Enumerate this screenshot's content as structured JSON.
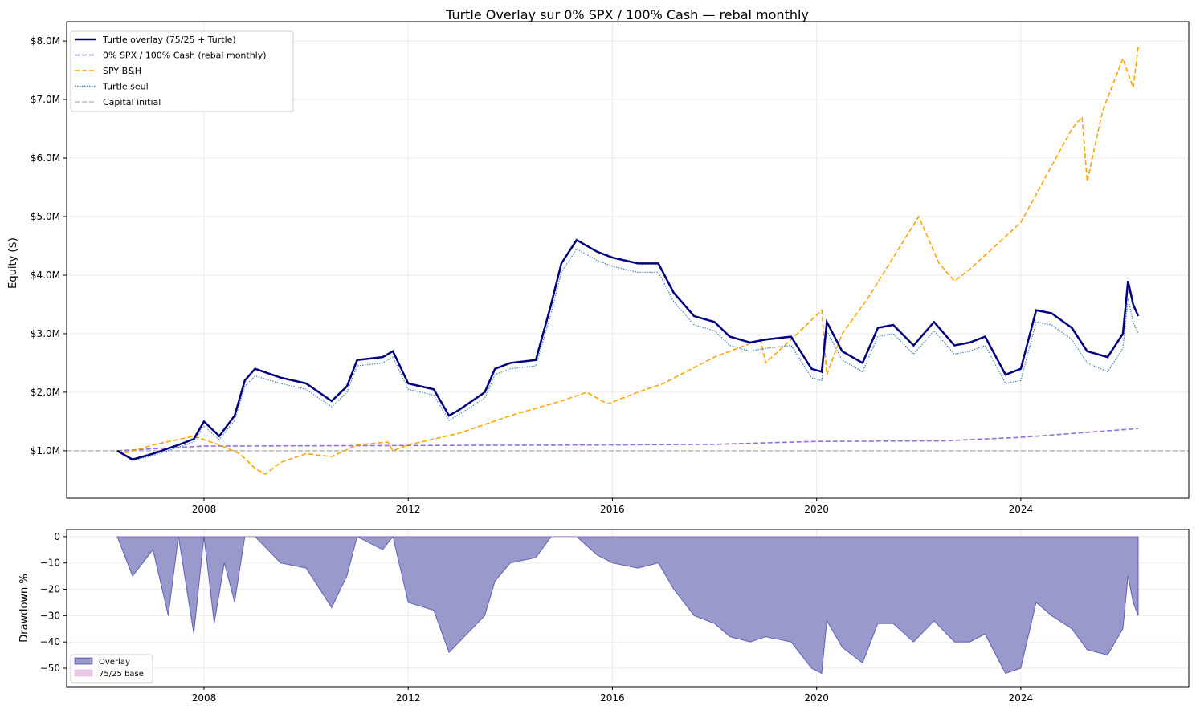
{
  "chart_data": [
    {
      "type": "line",
      "title": "Turtle Overlay sur 0% SPX / 100% Cash — rebal monthly",
      "xlabel": "",
      "ylabel": "Equity ($)",
      "xlim": [
        2005.31,
        2027.29
      ],
      "ylim": [
        0.19,
        8.33
      ],
      "grid": true,
      "legend_position": "top-left",
      "x_ticks": [
        2008,
        2012,
        2016,
        2020,
        2024
      ],
      "x_tick_labels": [
        "2008",
        "2012",
        "2016",
        "2020",
        "2024"
      ],
      "y_ticks": [
        1,
        2,
        3,
        4,
        5,
        6,
        7,
        8
      ],
      "y_tick_labels": [
        "$1.0M",
        "$2.0M",
        "$3.0M",
        "$4.0M",
        "$5.0M",
        "$6.0M",
        "$7.0M",
        "$8.0M"
      ],
      "series": [
        {
          "name": "Turtle overlay (75/25 + Turtle)",
          "color": "#000080",
          "style": "solid",
          "x": [
            2006.3,
            2006.6,
            2007.0,
            2007.5,
            2007.8,
            2008.0,
            2008.3,
            2008.6,
            2008.8,
            2009.0,
            2009.5,
            2010.0,
            2010.5,
            2010.8,
            2011.0,
            2011.5,
            2011.7,
            2012.0,
            2012.5,
            2012.8,
            2013.0,
            2013.5,
            2013.7,
            2014.0,
            2014.5,
            2014.8,
            2015.0,
            2015.3,
            2015.7,
            2016.0,
            2016.5,
            2016.9,
            2017.2,
            2017.6,
            2018.0,
            2018.3,
            2018.7,
            2019.0,
            2019.5,
            2019.9,
            2020.1,
            2020.2,
            2020.5,
            2020.9,
            2021.2,
            2021.5,
            2021.9,
            2022.3,
            2022.7,
            2023.0,
            2023.3,
            2023.7,
            2024.0,
            2024.3,
            2024.6,
            2025.0,
            2025.3,
            2025.7,
            2026.0,
            2026.1,
            2026.2,
            2026.3
          ],
          "y": [
            1.0,
            0.85,
            0.95,
            1.1,
            1.2,
            1.5,
            1.25,
            1.6,
            2.2,
            2.4,
            2.25,
            2.15,
            1.85,
            2.1,
            2.55,
            2.6,
            2.7,
            2.15,
            2.05,
            1.6,
            1.7,
            2.0,
            2.4,
            2.5,
            2.55,
            3.5,
            4.2,
            4.6,
            4.4,
            4.3,
            4.2,
            4.2,
            3.7,
            3.3,
            3.2,
            2.95,
            2.85,
            2.9,
            2.95,
            2.4,
            2.35,
            3.2,
            2.7,
            2.5,
            3.1,
            3.15,
            2.8,
            3.2,
            2.8,
            2.85,
            2.95,
            2.3,
            2.4,
            3.4,
            3.35,
            3.1,
            2.7,
            2.6,
            3.0,
            3.9,
            3.5,
            3.3
          ]
        },
        {
          "name": "0% SPX / 100% Cash (rebal monthly)",
          "color": "#9370DB",
          "style": "dashed",
          "x": [
            2006.3,
            2008.0,
            2016.0,
            2018.0,
            2020.0,
            2022.5,
            2024.0,
            2026.3
          ],
          "y": [
            1.0,
            1.08,
            1.1,
            1.11,
            1.16,
            1.17,
            1.23,
            1.38
          ]
        },
        {
          "name": "SPY B&H",
          "color": "#FFA500",
          "style": "dashed",
          "x": [
            2006.3,
            2006.5,
            2007.0,
            2007.8,
            2008.3,
            2008.7,
            2009.0,
            2009.2,
            2009.5,
            2010.0,
            2010.5,
            2011.0,
            2011.6,
            2011.7,
            2012.0,
            2013.0,
            2014.0,
            2015.0,
            2015.5,
            2015.9,
            2016.5,
            2017.0,
            2018.0,
            2018.9,
            2019.0,
            2019.5,
            2020.1,
            2020.2,
            2020.5,
            2021.0,
            2021.5,
            2022.0,
            2022.4,
            2022.7,
            2023.0,
            2023.5,
            2024.0,
            2024.5,
            2025.0,
            2025.2,
            2025.3,
            2025.6,
            2026.0,
            2026.2,
            2026.3
          ],
          "y": [
            1.0,
            0.97,
            1.1,
            1.25,
            1.1,
            0.95,
            0.7,
            0.6,
            0.8,
            0.95,
            0.9,
            1.1,
            1.15,
            1.0,
            1.1,
            1.3,
            1.6,
            1.85,
            2.0,
            1.8,
            2.0,
            2.15,
            2.6,
            2.9,
            2.5,
            2.9,
            3.4,
            2.3,
            3.0,
            3.6,
            4.3,
            5.0,
            4.2,
            3.9,
            4.1,
            4.5,
            4.9,
            5.7,
            6.5,
            6.7,
            5.6,
            6.8,
            7.7,
            7.2,
            7.9
          ]
        },
        {
          "name": "Turtle seul",
          "color": "#4682B4",
          "style": "dotted",
          "x": [
            2006.3,
            2006.6,
            2007.0,
            2007.5,
            2007.8,
            2008.0,
            2008.3,
            2008.6,
            2008.8,
            2009.0,
            2009.5,
            2010.0,
            2010.5,
            2010.8,
            2011.0,
            2011.5,
            2011.7,
            2012.0,
            2012.5,
            2012.8,
            2013.0,
            2013.5,
            2013.7,
            2014.0,
            2014.5,
            2014.8,
            2015.0,
            2015.3,
            2015.7,
            2016.0,
            2016.5,
            2016.9,
            2017.2,
            2017.6,
            2018.0,
            2018.3,
            2018.7,
            2019.0,
            2019.5,
            2019.9,
            2020.1,
            2020.2,
            2020.5,
            2020.9,
            2021.2,
            2021.5,
            2021.9,
            2022.3,
            2022.7,
            2023.0,
            2023.3,
            2023.7,
            2024.0,
            2024.3,
            2024.6,
            2025.0,
            2025.3,
            2025.7,
            2026.0,
            2026.1,
            2026.2,
            2026.3
          ],
          "y": [
            1.0,
            0.83,
            0.92,
            1.06,
            1.15,
            1.42,
            1.19,
            1.52,
            2.1,
            2.28,
            2.15,
            2.05,
            1.75,
            2.0,
            2.45,
            2.5,
            2.6,
            2.05,
            1.95,
            1.52,
            1.62,
            1.9,
            2.3,
            2.4,
            2.45,
            3.35,
            4.05,
            4.45,
            4.25,
            4.15,
            4.05,
            4.05,
            3.55,
            3.15,
            3.05,
            2.8,
            2.7,
            2.75,
            2.8,
            2.25,
            2.2,
            3.05,
            2.55,
            2.35,
            2.95,
            3.0,
            2.65,
            3.05,
            2.65,
            2.7,
            2.8,
            2.15,
            2.2,
            3.2,
            3.15,
            2.9,
            2.5,
            2.35,
            2.75,
            3.6,
            3.2,
            3.0
          ]
        },
        {
          "name": "Capital initial",
          "color": "#BBBBBB",
          "style": "dashed",
          "x": [
            2005.31,
            2027.29
          ],
          "y": [
            1.0,
            1.0
          ]
        }
      ]
    },
    {
      "type": "area",
      "title": "",
      "xlabel": "",
      "ylabel": "Drawdown %",
      "xlim": [
        2005.31,
        2027.29
      ],
      "ylim": [
        -57,
        2.7
      ],
      "grid": true,
      "legend_position": "bottom-left",
      "x_ticks": [
        2008,
        2012,
        2016,
        2020,
        2024
      ],
      "x_tick_labels": [
        "2008",
        "2012",
        "2016",
        "2020",
        "2024"
      ],
      "y_ticks": [
        0,
        -10,
        -20,
        -30,
        -40,
        -50
      ],
      "y_tick_labels": [
        "0",
        "−10",
        "−20",
        "−30",
        "−40",
        "−50"
      ],
      "series": [
        {
          "name": "Overlay",
          "color": "#00008B",
          "fill": "#9999CC",
          "x": [
            2006.3,
            2006.6,
            2007.0,
            2007.3,
            2007.5,
            2007.8,
            2008.0,
            2008.2,
            2008.4,
            2008.6,
            2008.8,
            2009.0,
            2009.5,
            2010.0,
            2010.5,
            2010.8,
            2011.0,
            2011.5,
            2011.7,
            2012.0,
            2012.5,
            2012.8,
            2013.0,
            2013.5,
            2013.7,
            2014.0,
            2014.5,
            2014.8,
            2015.0,
            2015.3,
            2015.7,
            2016.0,
            2016.5,
            2016.9,
            2017.2,
            2017.6,
            2018.0,
            2018.3,
            2018.7,
            2019.0,
            2019.5,
            2019.9,
            2020.1,
            2020.2,
            2020.5,
            2020.9,
            2021.2,
            2021.5,
            2021.9,
            2022.3,
            2022.7,
            2023.0,
            2023.3,
            2023.7,
            2024.0,
            2024.3,
            2024.6,
            2025.0,
            2025.3,
            2025.7,
            2026.0,
            2026.1,
            2026.2,
            2026.3
          ],
          "y": [
            0,
            -15,
            -5,
            -30,
            0,
            -37,
            0,
            -33,
            -10,
            -25,
            0,
            0,
            -10,
            -12,
            -27,
            -15,
            0,
            -5,
            0,
            -25,
            -28,
            -44,
            -40,
            -30,
            -17,
            -10,
            -8,
            0,
            0,
            0,
            -7,
            -10,
            -12,
            -10,
            -20,
            -30,
            -33,
            -38,
            -40,
            -38,
            -40,
            -50,
            -52,
            -32,
            -42,
            -48,
            -33,
            -33,
            -40,
            -32,
            -40,
            -40,
            -37,
            -52,
            -50,
            -25,
            -30,
            -35,
            -43,
            -45,
            -35,
            -15,
            -25,
            -30
          ]
        },
        {
          "name": "75/25 base",
          "color": "#DDA0DD",
          "fill": "#E6C8E6",
          "x": [
            2006.3,
            2026.3
          ],
          "y": [
            0,
            0
          ]
        }
      ]
    }
  ]
}
